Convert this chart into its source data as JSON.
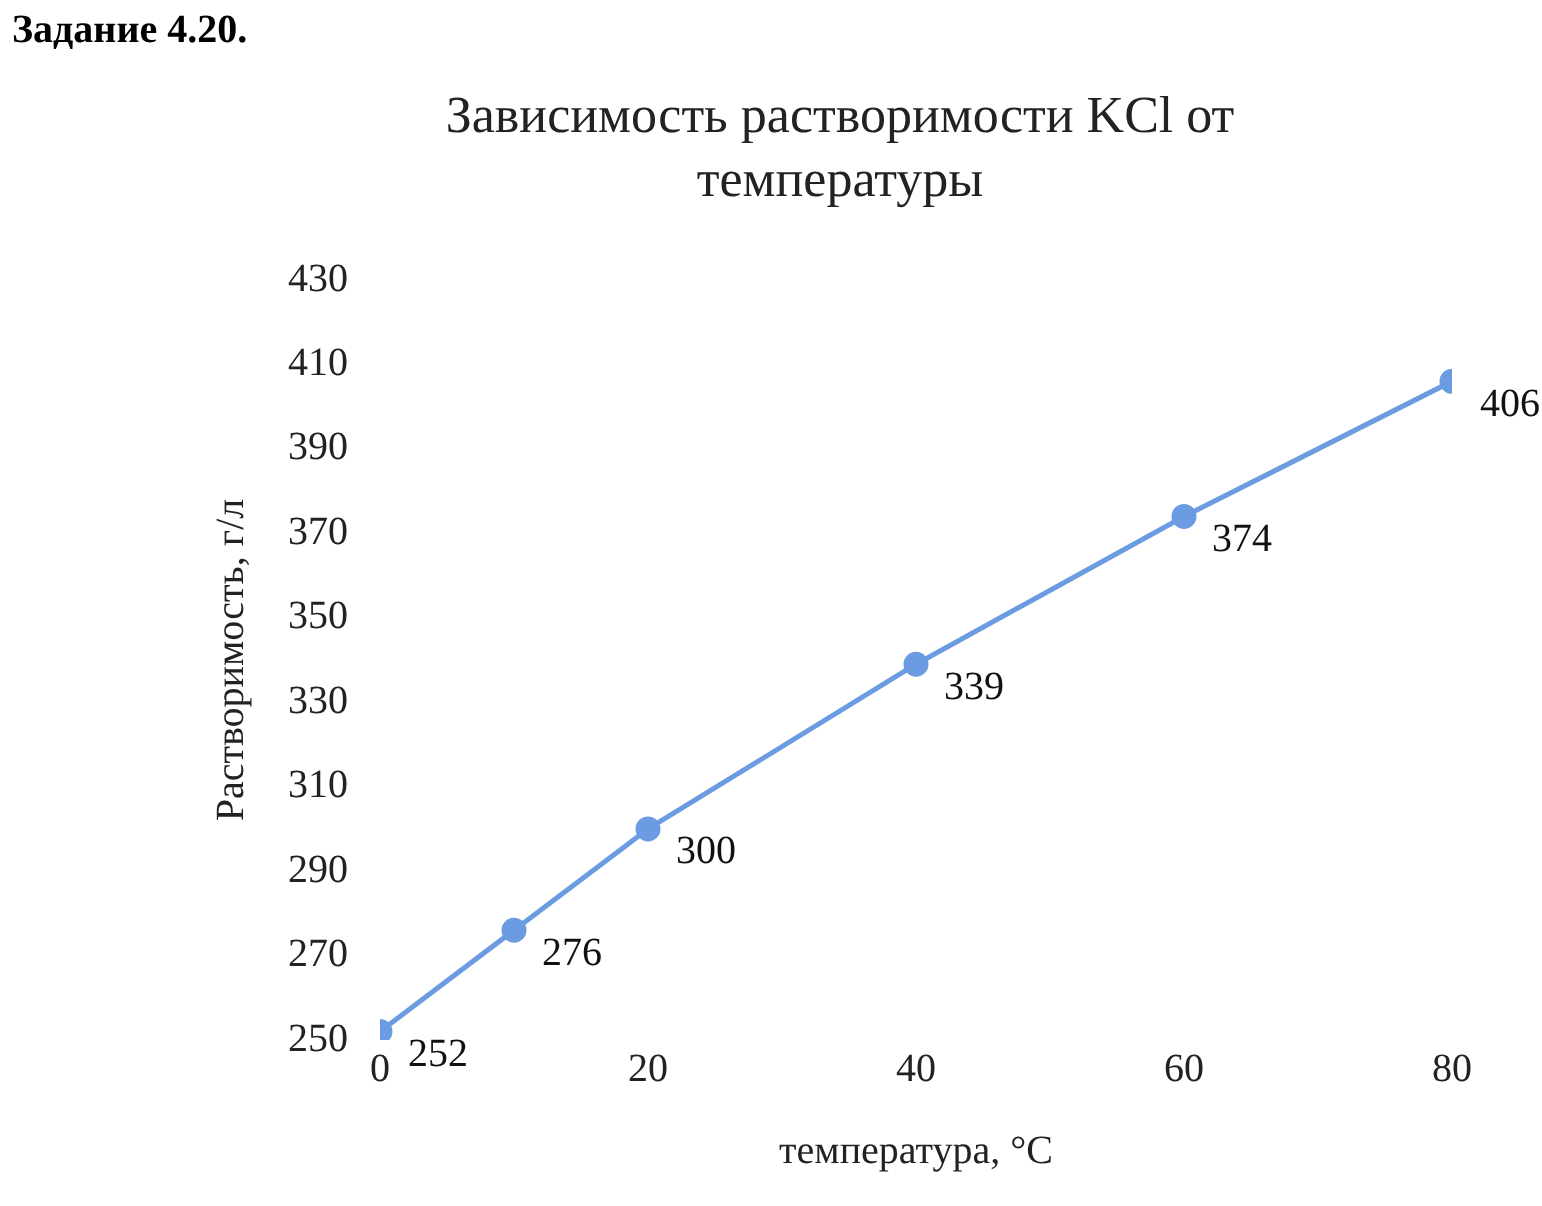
{
  "chart_data": {
    "type": "line",
    "title": "Зависимость растворимости KCl от температуры",
    "xlabel": "температура, °C",
    "ylabel": "Растворимость, г/л",
    "annotations": [
      "Задание 4.20."
    ],
    "x": [
      0,
      10,
      20,
      40,
      60,
      80
    ],
    "series": [
      {
        "color": "#6b9be0",
        "values": [
          252,
          276,
          300,
          339,
          374,
          406
        ]
      }
    ],
    "xlim": [
      0,
      80
    ],
    "xticks": [
      0,
      20,
      40,
      60,
      80
    ],
    "ylim": [
      250,
      430
    ],
    "yticks": [
      250,
      270,
      290,
      310,
      330,
      350,
      370,
      390,
      410,
      430
    ],
    "grid": false,
    "legend": false,
    "marker": "circle",
    "line_style": "solid",
    "data_labels": true
  }
}
